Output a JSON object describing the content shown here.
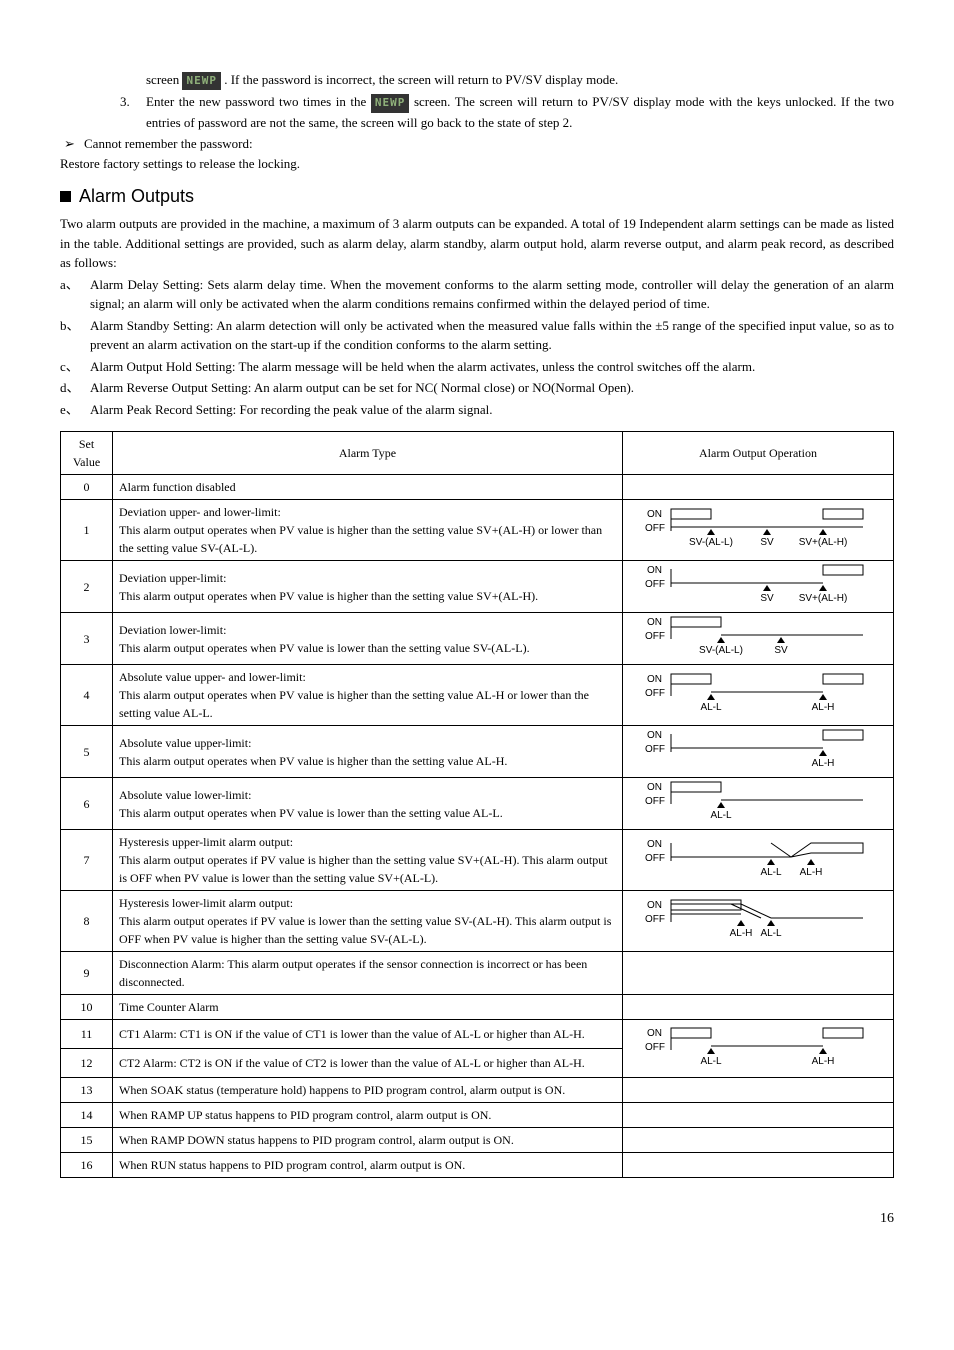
{
  "intro": {
    "line1_prefix": "screen ",
    "lcd_text": "NEWP",
    "line1_suffix": ". If the password is incorrect, the screen will return to PV/SV display mode.",
    "step3_num": "3.",
    "step3_a": "Enter the new password two times in the ",
    "step3_b": " screen. The screen will return to PV/SV display mode with the keys unlocked. If the two entries of password are not the same, the screen will go back to the state of step 2.",
    "arrow_sym": "➢",
    "cannot_remember": "Cannot remember the password:",
    "restore": "Restore factory settings to release the locking."
  },
  "section_title": "Alarm Outputs",
  "section_intro": "Two alarm outputs are provided in the machine, a maximum of 3 alarm outputs can be expanded. A total of 19 Independent alarm settings can be made as listed in the table. Additional settings are provided, such as alarm delay, alarm standby, alarm output hold, alarm reverse output, and alarm peak record, as described as follows:",
  "letters": [
    {
      "lbl": "a、",
      "txt": "Alarm Delay Setting: Sets alarm delay time. When the movement conforms to the alarm setting mode, controller will delay the generation of an alarm signal; an alarm will only be activated when the alarm conditions remains confirmed within the delayed period of time."
    },
    {
      "lbl": "b、",
      "txt": "Alarm Standby Setting: An alarm detection will only be activated when the measured value falls within the ±5 range of the specified input value, so as to prevent an alarm activation on the start-up if the condition conforms to the alarm setting."
    },
    {
      "lbl": "c、",
      "txt": "Alarm Output Hold Setting: The alarm message will be held when the alarm activates, unless the control switches off the alarm."
    },
    {
      "lbl": "d、",
      "txt": "Alarm Reverse Output Setting: An alarm output can be set for NC( Normal close) or NO(Normal Open)."
    },
    {
      "lbl": "e、",
      "txt": "Alarm Peak Record Setting: For recording the peak value of the alarm signal."
    }
  ],
  "table": {
    "head": {
      "set": "Set Value",
      "type": "Alarm Type",
      "op": "Alarm Output Operation"
    },
    "labels": {
      "on": "ON",
      "off": "OFF",
      "sv": "SV",
      "sv_al_l": "SV-(AL-L)",
      "sv_al_h": "SV+(AL-H)",
      "al_l": "AL-L",
      "al_h": "AL-H"
    },
    "colors": {
      "line": "#000000",
      "fill_off": "#ffffff",
      "fill_on": "#000000"
    },
    "rows": [
      {
        "sv": "0",
        "type": "Alarm function disabled",
        "op": null
      },
      {
        "sv": "1",
        "type": "Deviation upper- and lower-limit:\nThis alarm output operates when PV value is higher than the setting value SV+(AL-H) or lower than the setting value SV-(AL-L).",
        "op": "d1"
      },
      {
        "sv": "2",
        "type": "Deviation upper-limit:\nThis alarm output operates when PV value is higher than the setting value SV+(AL-H).",
        "op": "d2"
      },
      {
        "sv": "3",
        "type": "Deviation lower-limit:\nThis alarm output operates when PV value is lower than the setting value SV-(AL-L).",
        "op": "d3"
      },
      {
        "sv": "4",
        "type": "Absolute value upper- and lower-limit:\nThis alarm output operates when PV value is higher than the setting value AL-H or lower than the setting value AL-L.",
        "op": "d4"
      },
      {
        "sv": "5",
        "type": "Absolute value upper-limit:\nThis alarm output operates when PV value is higher than the setting value AL-H.",
        "op": "d5"
      },
      {
        "sv": "6",
        "type": "Absolute value lower-limit:\nThis alarm output operates when PV value is lower than the setting value AL-L.",
        "op": "d6"
      },
      {
        "sv": "7",
        "type": "Hysteresis upper-limit alarm output:\nThis alarm output operates if PV value is higher than the setting value SV+(AL-H). This alarm output is OFF when PV value is lower than the setting value SV+(AL-L).",
        "op": "d7"
      },
      {
        "sv": "8",
        "type": "Hysteresis lower-limit alarm output:\nThis alarm output operates if PV value is lower than the setting value SV-(AL-H). This alarm output is OFF when PV value is higher than the setting value SV-(AL-L).",
        "op": "d8"
      },
      {
        "sv": "9",
        "type": "Disconnection Alarm: This alarm output operates if the sensor connection is incorrect or has been disconnected.",
        "op": null
      },
      {
        "sv": "10",
        "type": "Time Counter Alarm",
        "op": null
      },
      {
        "sv": "11",
        "type": "CT1 Alarm: CT1 is ON if the value of CT1 is lower than the value of AL-L or higher than AL-H.",
        "op": "d11",
        "rowspan_op": 2
      },
      {
        "sv": "12",
        "type": "CT2 Alarm: CT2 is ON if the value of CT2 is lower than the value of AL-L or higher than AL-H.",
        "op": null,
        "skip_op": true
      },
      {
        "sv": "13",
        "type": "When SOAK status (temperature hold) happens to PID program control, alarm output is ON.",
        "op": null
      },
      {
        "sv": "14",
        "type": "When RAMP UP status happens to PID program control, alarm output is ON.",
        "op": null
      },
      {
        "sv": "15",
        "type": "When RAMP DOWN status happens to PID program control, alarm output is ON.",
        "op": null
      },
      {
        "sv": "16",
        "type": "When RUN status happens to PID program control, alarm output is ON.",
        "op": null
      }
    ]
  },
  "page_number": "16"
}
